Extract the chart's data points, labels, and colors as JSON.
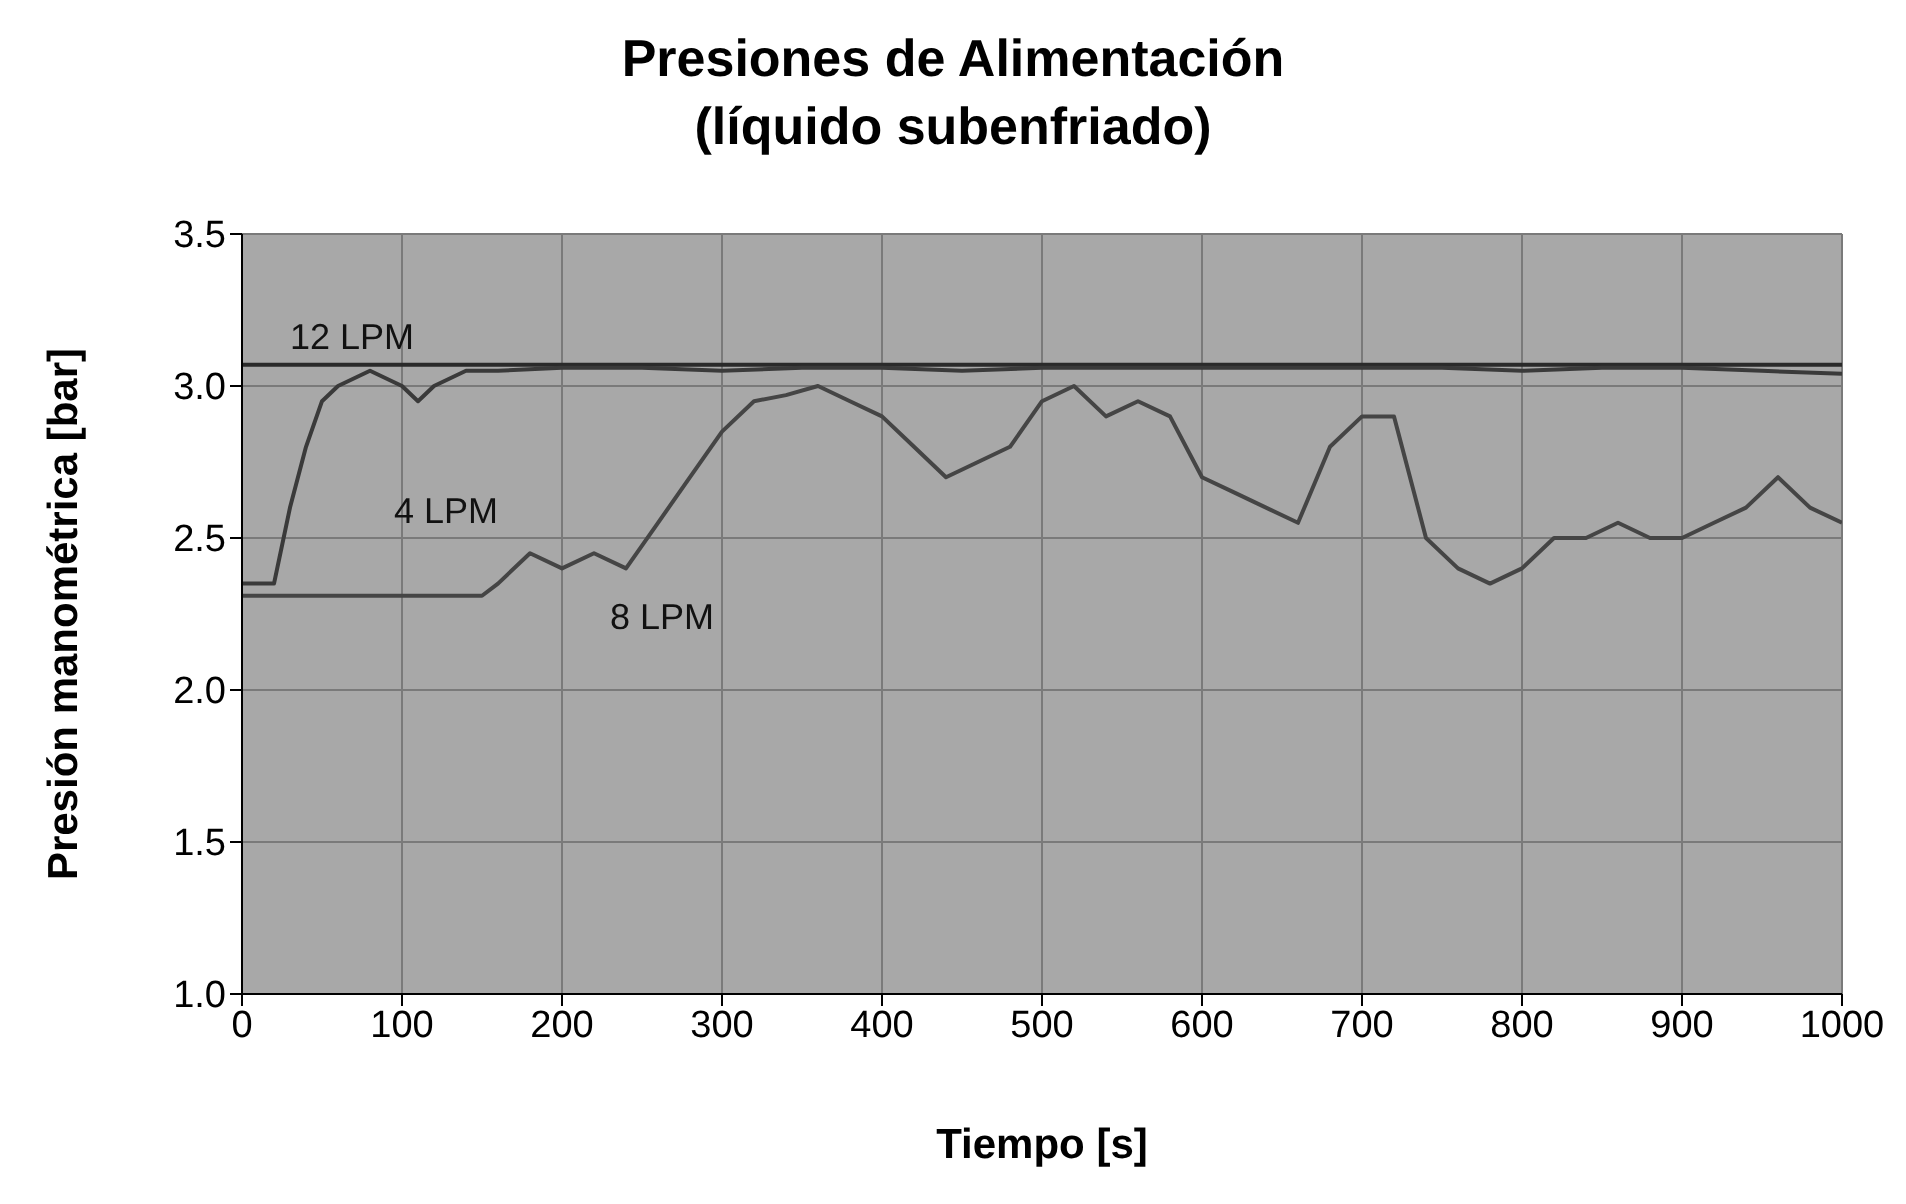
{
  "chart_data": {
    "type": "line",
    "title": "Presiones de Alimentación",
    "subtitle": "(líquido subenfriado)",
    "xlabel": "Tiempo [s]",
    "ylabel": "Presión manométrica [bar]",
    "xlim": [
      0,
      1000
    ],
    "xticks": [
      0,
      100,
      200,
      300,
      400,
      500,
      600,
      700,
      800,
      900,
      1000
    ],
    "ylim": [
      1.0,
      3.5
    ],
    "yticks": [
      {
        "value": 1.0,
        "label": "1.0"
      },
      {
        "value": 1.5,
        "label": "1.5"
      },
      {
        "value": 2.0,
        "label": "2.0"
      },
      {
        "value": 2.5,
        "label": "2.5"
      },
      {
        "value": 3.0,
        "label": "3.0"
      },
      {
        "value": 3.5,
        "label": "3.5"
      }
    ],
    "grid": true,
    "legend": false,
    "marker": "none",
    "line_style": "solid",
    "series": [
      {
        "color": "#2a2a2a",
        "x": [
          0,
          1000
        ],
        "values": [
          3.07,
          3.07
        ]
      },
      {
        "color": "#3a3a3a",
        "x": [
          0,
          20,
          30,
          40,
          50,
          60,
          80,
          100,
          110,
          120,
          140,
          160,
          200,
          250,
          300,
          350,
          400,
          450,
          500,
          550,
          600,
          650,
          700,
          750,
          800,
          850,
          900,
          950,
          1000
        ],
        "values": [
          2.35,
          2.35,
          2.6,
          2.8,
          2.95,
          3.0,
          3.05,
          3.0,
          2.95,
          3.0,
          3.05,
          3.05,
          3.06,
          3.06,
          3.05,
          3.06,
          3.06,
          3.05,
          3.06,
          3.06,
          3.06,
          3.06,
          3.06,
          3.06,
          3.05,
          3.06,
          3.06,
          3.05,
          3.04
        ]
      },
      {
        "color": "#454545",
        "x": [
          0,
          150,
          160,
          180,
          200,
          220,
          240,
          260,
          280,
          300,
          320,
          340,
          360,
          380,
          400,
          420,
          440,
          460,
          480,
          500,
          520,
          540,
          560,
          580,
          600,
          620,
          640,
          660,
          680,
          700,
          720,
          740,
          760,
          780,
          800,
          820,
          840,
          860,
          880,
          900,
          920,
          940,
          960,
          980,
          1000
        ],
        "values": [
          2.31,
          2.31,
          2.35,
          2.45,
          2.4,
          2.45,
          2.4,
          2.55,
          2.7,
          2.85,
          2.95,
          2.97,
          3.0,
          2.95,
          2.9,
          2.8,
          2.7,
          2.75,
          2.8,
          2.95,
          3.0,
          2.9,
          2.95,
          2.9,
          2.7,
          2.65,
          2.6,
          2.55,
          2.8,
          2.9,
          2.9,
          2.5,
          2.4,
          2.35,
          2.4,
          2.5,
          2.5,
          2.55,
          2.5,
          2.5,
          2.55,
          2.6,
          2.7,
          2.6,
          2.55
        ]
      }
    ],
    "annotations": [
      {
        "text": "12 LPM",
        "x": 30,
        "y": 3.07
      },
      "4 LPM",
      "8 LPM"
    ]
  }
}
